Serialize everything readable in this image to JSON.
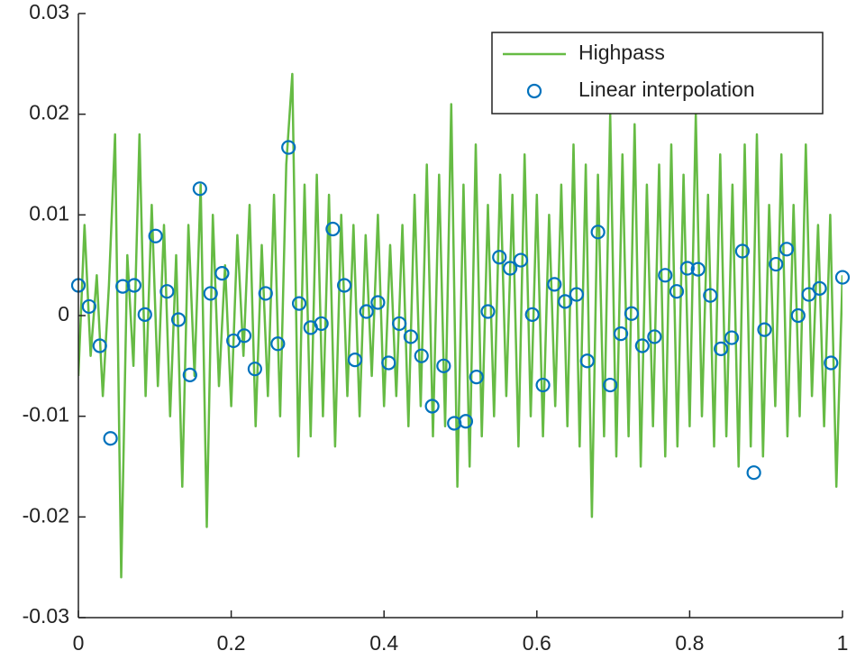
{
  "chart_data": {
    "type": "line",
    "xlim": [
      0,
      1
    ],
    "ylim": [
      -0.03,
      0.03
    ],
    "xticks": [
      0,
      0.2,
      0.4,
      0.6,
      0.8,
      1
    ],
    "yticks": [
      -0.03,
      -0.02,
      -0.01,
      0,
      0.01,
      0.02,
      0.03
    ],
    "legend": "northeast",
    "series": [
      {
        "name": "Highpass",
        "type": "line",
        "color": "#66bb44",
        "x": [
          0,
          0.008,
          0.016,
          0.024,
          0.032,
          0.04,
          0.048,
          0.056,
          0.064,
          0.072,
          0.08,
          0.088,
          0.096,
          0.104,
          0.112,
          0.12,
          0.128,
          0.136,
          0.144,
          0.152,
          0.16,
          0.168,
          0.176,
          0.184,
          0.192,
          0.2,
          0.208,
          0.216,
          0.224,
          0.232,
          0.24,
          0.248,
          0.256,
          0.264,
          0.272,
          0.28,
          0.288,
          0.296,
          0.304,
          0.312,
          0.32,
          0.328,
          0.336,
          0.344,
          0.352,
          0.36,
          0.368,
          0.376,
          0.384,
          0.392,
          0.4,
          0.408,
          0.416,
          0.424,
          0.432,
          0.44,
          0.448,
          0.456,
          0.464,
          0.472,
          0.48,
          0.488,
          0.496,
          0.504,
          0.512,
          0.52,
          0.528,
          0.536,
          0.544,
          0.552,
          0.56,
          0.568,
          0.576,
          0.584,
          0.592,
          0.6,
          0.608,
          0.616,
          0.624,
          0.632,
          0.64,
          0.648,
          0.656,
          0.664,
          0.672,
          0.68,
          0.688,
          0.696,
          0.704,
          0.712,
          0.72,
          0.728,
          0.736,
          0.744,
          0.752,
          0.76,
          0.768,
          0.776,
          0.784,
          0.792,
          0.8,
          0.808,
          0.816,
          0.824,
          0.832,
          0.84,
          0.848,
          0.856,
          0.864,
          0.872,
          0.88,
          0.888,
          0.896,
          0.904,
          0.912,
          0.92,
          0.928,
          0.936,
          0.944,
          0.952,
          0.96,
          0.968,
          0.976,
          0.984,
          0.992,
          1
        ],
        "values": [
          -0.006,
          0.009,
          -0.004,
          0.004,
          -0.008,
          0.003,
          0.018,
          -0.026,
          0.006,
          -0.005,
          0.018,
          -0.008,
          0.011,
          -0.007,
          0.009,
          -0.01,
          0.006,
          -0.017,
          0.009,
          -0.006,
          0.013,
          -0.021,
          0.01,
          -0.007,
          0.005,
          -0.009,
          0.008,
          -0.004,
          0.011,
          -0.011,
          0.007,
          -0.008,
          0.012,
          -0.01,
          0.015,
          0.024,
          -0.014,
          0.013,
          -0.012,
          0.014,
          -0.01,
          0.012,
          -0.013,
          0.01,
          -0.008,
          0.009,
          -0.01,
          0.008,
          -0.006,
          0.01,
          -0.009,
          0.007,
          -0.008,
          0.009,
          -0.011,
          0.012,
          -0.009,
          0.015,
          -0.012,
          0.014,
          -0.011,
          0.021,
          -0.017,
          0.013,
          -0.015,
          0.017,
          -0.012,
          0.011,
          -0.01,
          0.014,
          -0.008,
          0.012,
          -0.013,
          0.016,
          -0.01,
          0.012,
          -0.012,
          0.01,
          -0.009,
          0.013,
          -0.011,
          0.017,
          -0.013,
          0.015,
          -0.02,
          0.014,
          -0.012,
          0.02,
          -0.014,
          0.016,
          -0.012,
          0.019,
          -0.015,
          0.013,
          -0.011,
          0.015,
          -0.014,
          0.017,
          -0.013,
          0.014,
          -0.011,
          0.02,
          -0.01,
          0.012,
          -0.013,
          0.016,
          -0.012,
          0.013,
          -0.015,
          0.017,
          -0.013,
          0.018,
          -0.014,
          0.011,
          -0.009,
          0.016,
          -0.012,
          0.011,
          -0.01,
          0.017,
          -0.008,
          0.009,
          -0.011,
          0.01,
          -0.017,
          0.004
        ]
      },
      {
        "name": "Linear interpolation",
        "type": "scatter",
        "color": "#0072bd",
        "x": [
          0,
          0.014,
          0.028,
          0.042,
          0.058,
          0.073,
          0.087,
          0.101,
          0.116,
          0.131,
          0.146,
          0.159,
          0.173,
          0.188,
          0.203,
          0.217,
          0.231,
          0.245,
          0.261,
          0.275,
          0.289,
          0.304,
          0.318,
          0.333,
          0.348,
          0.362,
          0.377,
          0.392,
          0.406,
          0.42,
          0.435,
          0.449,
          0.463,
          0.478,
          0.492,
          0.507,
          0.521,
          0.536,
          0.551,
          0.565,
          0.579,
          0.594,
          0.608,
          0.623,
          0.637,
          0.652,
          0.666,
          0.68,
          0.696,
          0.71,
          0.724,
          0.738,
          0.754,
          0.768,
          0.783,
          0.797,
          0.811,
          0.827,
          0.841,
          0.855,
          0.869,
          0.884,
          0.898,
          0.913,
          0.927,
          0.942,
          0.956,
          0.97,
          0.985,
          1
        ],
        "values": [
          0.003,
          0.0009,
          -0.003,
          -0.0122,
          0.0029,
          0.003,
          0.0001,
          0.0079,
          0.0024,
          -0.0004,
          -0.0059,
          0.0126,
          0.0022,
          0.0042,
          -0.0025,
          -0.002,
          -0.0053,
          0.0022,
          -0.0028,
          0.0167,
          0.0012,
          -0.0012,
          -0.0008,
          0.0086,
          0.003,
          -0.0044,
          0.0004,
          0.0013,
          -0.0047,
          -0.0008,
          -0.0021,
          -0.004,
          -0.009,
          -0.005,
          -0.0107,
          -0.0105,
          -0.0061,
          0.0004,
          0.0058,
          0.0047,
          0.0055,
          0.0001,
          -0.0069,
          0.0031,
          0.0014,
          0.0021,
          -0.0045,
          0.0083,
          -0.0069,
          -0.0018,
          0.0002,
          -0.003,
          -0.0021,
          0.004,
          0.0024,
          0.0047,
          0.0046,
          0.002,
          -0.0033,
          -0.0022,
          0.0064,
          -0.0156,
          -0.0014,
          0.0051,
          0.0066,
          0,
          0.0021,
          0.0027,
          -0.0047,
          0.0038
        ]
      }
    ]
  }
}
